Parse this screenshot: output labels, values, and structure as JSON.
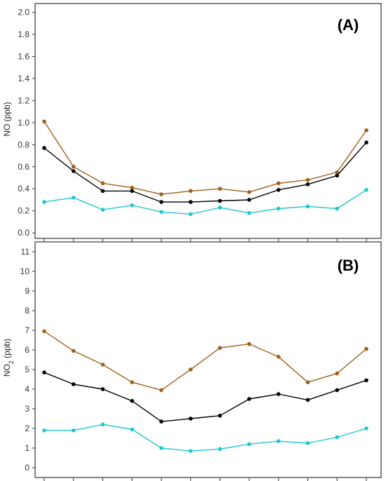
{
  "chart_data": [
    {
      "type": "line",
      "panel_label": "(A)",
      "ylabel_main": "NO (ppb)",
      "ylabel_sub": "",
      "ylabel_tail": "",
      "ylim": [
        -0.05,
        2.08
      ],
      "yticks": [
        0.0,
        0.2,
        0.4,
        0.6,
        0.8,
        1.0,
        1.2,
        1.4,
        1.6,
        1.8,
        2.0
      ],
      "ytick_labels": [
        "0.0",
        "0.2",
        "0.4",
        "0.6",
        "0.8",
        "1.0",
        "1.2",
        "1.4",
        "1.6",
        "1.8",
        "2.0"
      ],
      "x": [
        1,
        2,
        3,
        4,
        5,
        6,
        7,
        8,
        9,
        10,
        11,
        12
      ],
      "grid": false,
      "series": [
        {
          "color": "#a0601a",
          "values": [
            1.01,
            0.6,
            0.45,
            0.41,
            0.35,
            0.38,
            0.4,
            0.37,
            0.45,
            0.48,
            0.55,
            0.93
          ]
        },
        {
          "color": "#000000",
          "values": [
            0.77,
            0.56,
            0.38,
            0.38,
            0.28,
            0.28,
            0.29,
            0.3,
            0.39,
            0.44,
            0.52,
            0.82
          ]
        },
        {
          "color": "#1fc7cf",
          "values": [
            0.28,
            0.32,
            0.21,
            0.25,
            0.19,
            0.17,
            0.23,
            0.18,
            0.22,
            0.24,
            0.22,
            0.39
          ]
        }
      ]
    },
    {
      "type": "line",
      "panel_label": "(B)",
      "ylabel_main": "NO",
      "ylabel_sub": "2",
      "ylabel_tail": " (ppb)",
      "ylim": [
        -0.5,
        11.5
      ],
      "yticks": [
        0,
        1,
        2,
        3,
        4,
        5,
        6,
        7,
        8,
        9,
        10,
        11
      ],
      "ytick_labels": [
        "0",
        "1",
        "2",
        "3",
        "4",
        "5",
        "6",
        "7",
        "8",
        "9",
        "10",
        "11"
      ],
      "x": [
        1,
        2,
        3,
        4,
        5,
        6,
        7,
        8,
        9,
        10,
        11,
        12
      ],
      "grid": false,
      "series": [
        {
          "color": "#a0601a",
          "values": [
            6.95,
            5.95,
            5.25,
            4.35,
            3.95,
            5.0,
            6.1,
            6.3,
            5.65,
            4.35,
            4.8,
            6.05
          ]
        },
        {
          "color": "#000000",
          "values": [
            4.85,
            4.25,
            4.0,
            3.4,
            2.35,
            2.5,
            2.65,
            3.5,
            3.75,
            3.45,
            3.95,
            4.45
          ]
        },
        {
          "color": "#1fc7cf",
          "values": [
            1.9,
            1.9,
            2.2,
            1.95,
            1.0,
            0.85,
            0.95,
            1.2,
            1.35,
            1.25,
            1.55,
            2.0
          ]
        }
      ]
    }
  ]
}
